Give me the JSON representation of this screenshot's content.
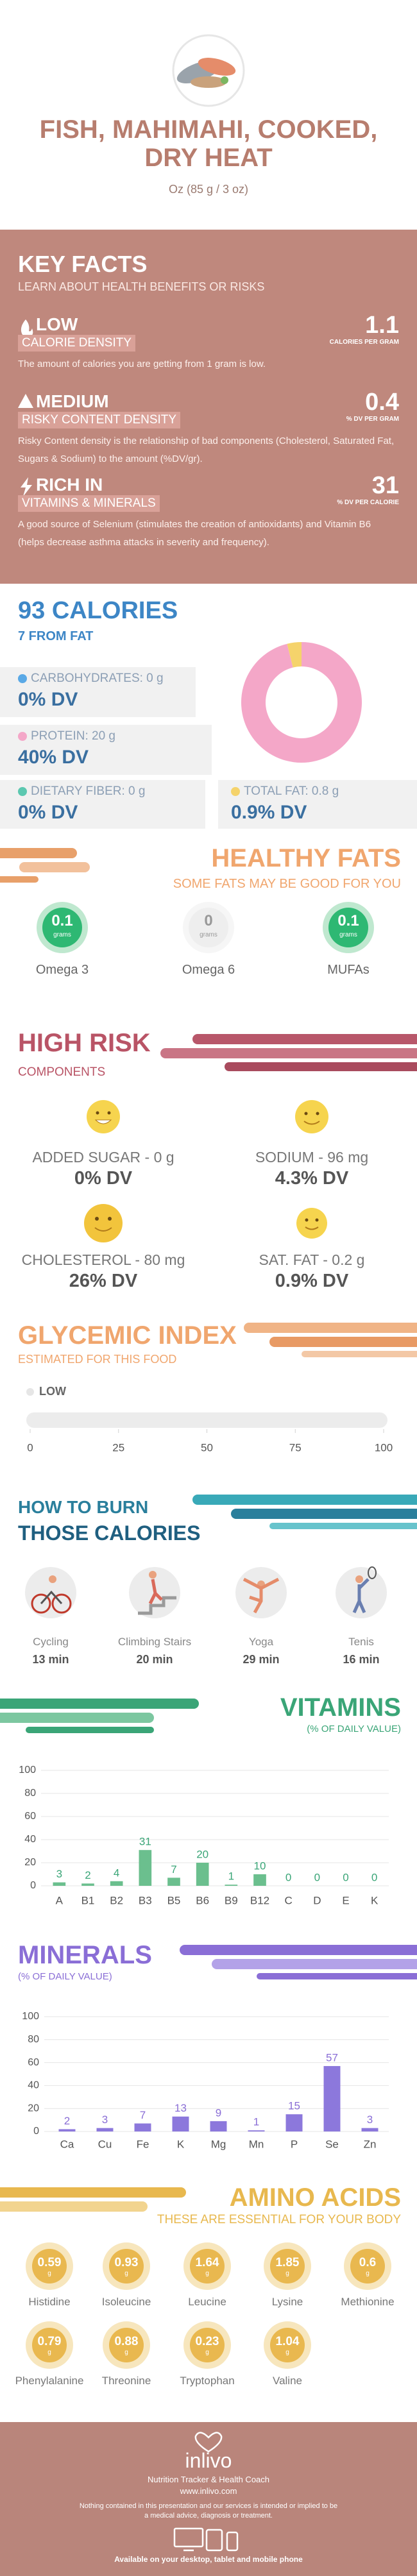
{
  "header": {
    "title": "FISH, MAHIMAHI, COOKED, DRY HEAT",
    "serving": "Oz (85 g / 3 oz)"
  },
  "key_facts": {
    "title": "KEY FACTS",
    "subtitle": "LEARN ABOUT HEALTH BENEFITS OR RISKS",
    "items": [
      {
        "level": "LOW",
        "label": "CALORIE DENSITY",
        "value": 1.1,
        "unit": "CALORIES PER GRAM",
        "text": "The amount of calories you are getting from 1 gram is low."
      },
      {
        "level": "MEDIUM",
        "label": "RISKY CONTENT DENSITY",
        "value": 0.4,
        "unit": "% DV PER GRAM",
        "text": "Risky Content density is the relationship of bad components (Cholesterol, Saturated Fat, Sugars & Sodium) to the amount (%DV/gr)."
      },
      {
        "level": "RICH IN",
        "label": "VITAMINS & MINERALS",
        "value": 31,
        "unit": "% DV PER CALORIE",
        "text": "A good source of Selenium (stimulates the creation of antioxidants) and Vitamin B6 (helps decrease asthma attacks in severity and frequency)."
      }
    ]
  },
  "chart_data": [
    {
      "type": "pie",
      "title": "93 CALORIES",
      "subtitle": "7 FROM FAT",
      "categories": [
        "CARBOHYDRATES: 0 g",
        "PROTEIN: 20 g",
        "DIETARY FIBER: 0 g",
        "TOTAL FAT: 0.8 g"
      ],
      "values": [
        0,
        20,
        0,
        0.8
      ],
      "dv_labels": [
        "0% DV",
        "40% DV",
        "0% DV",
        "0.9% DV"
      ],
      "colors": [
        "#5aa9e6",
        "#f4a7c8",
        "#5cc8b0",
        "#f5d36b"
      ]
    },
    {
      "type": "bar",
      "orientation": "horizontal",
      "title": "GLYCEMIC INDEX",
      "subtitle": "ESTIMATED FOR THIS FOOD",
      "categories": [
        "LOW"
      ],
      "values": [
        0
      ],
      "color": "#9bd17e",
      "xlim": [
        0,
        100
      ],
      "xticks": [
        0,
        25,
        50,
        75,
        100
      ]
    },
    {
      "type": "bar",
      "title": "VITAMINS",
      "subtitle": "(% OF DAILY VALUE)",
      "categories": [
        "A",
        "B1",
        "B2",
        "B3",
        "B5",
        "B6",
        "B9",
        "B12",
        "C",
        "D",
        "E",
        "K"
      ],
      "values": [
        3,
        2,
        4,
        31,
        7,
        20,
        1,
        10,
        0,
        0,
        0,
        0
      ],
      "color": "#6bbf8e",
      "ylim": [
        0,
        100
      ],
      "yticks": [
        0,
        20,
        40,
        60,
        80,
        100
      ],
      "grid": true
    },
    {
      "type": "bar",
      "title": "MINERALS",
      "subtitle": "(% OF DAILY VALUE)",
      "categories": [
        "Ca",
        "Cu",
        "Fe",
        "K",
        "Mg",
        "Mn",
        "P",
        "Se",
        "Zn"
      ],
      "values": [
        2,
        3,
        7,
        13,
        9,
        1,
        15,
        57,
        3
      ],
      "color": "#8c78dc",
      "ylim": [
        0,
        100
      ],
      "yticks": [
        0,
        20,
        40,
        60,
        80,
        100
      ],
      "grid": true
    }
  ],
  "healthy_fats": {
    "title": "HEALTHY FATS",
    "subtitle": "SOME FATS MAY BE GOOD FOR YOU",
    "unit": "grams",
    "items": [
      {
        "name": "Omega 3",
        "value": 0.1
      },
      {
        "name": "Omega 6",
        "value": 0
      },
      {
        "name": "MUFAs",
        "value": 0.1
      }
    ]
  },
  "high_risk": {
    "title": "HIGH RISK",
    "subtitle": "COMPONENTS",
    "items": [
      {
        "label": "ADDED SUGAR - 0 g",
        "dv": "0% DV"
      },
      {
        "label": "SODIUM - 96 mg",
        "dv": "4.3% DV"
      },
      {
        "label": "CHOLESTEROL - 80 mg",
        "dv": "26% DV"
      },
      {
        "label": "SAT. FAT - 0.2 g",
        "dv": "0.9% DV"
      }
    ]
  },
  "burn": {
    "title": "HOW TO BURN",
    "subtitle": "THOSE CALORIES",
    "items": [
      {
        "name": "Cycling",
        "time": "13 min"
      },
      {
        "name": "Climbing Stairs",
        "time": "20 min"
      },
      {
        "name": "Yoga",
        "time": "29 min"
      },
      {
        "name": "Tenis",
        "time": "16 min"
      }
    ]
  },
  "amino_acids": {
    "title": "AMINO ACIDS",
    "subtitle": "THESE ARE ESSENTIAL FOR YOUR BODY",
    "unit": "g",
    "items": [
      {
        "name": "Histidine",
        "value": 0.59
      },
      {
        "name": "Isoleucine",
        "value": 0.93
      },
      {
        "name": "Leucine",
        "value": 1.64
      },
      {
        "name": "Lysine",
        "value": 1.85
      },
      {
        "name": "Methionine",
        "value": 0.6
      },
      {
        "name": "Phenylalanine",
        "value": 0.79
      },
      {
        "name": "Threonine",
        "value": 0.88
      },
      {
        "name": "Tryptophan",
        "value": 0.23
      },
      {
        "name": "Valine",
        "value": 1.04
      }
    ]
  },
  "footer": {
    "brand": "inlivo",
    "tagline": "Nutrition Tracker & Health Coach",
    "url": "www.inlivo.com",
    "disclaimer": "Nothing contained in this presentation and our services is intended or implied to be a medical advice, diagnosis or treatment.",
    "available": "Available on your desktop, tablet and mobile phone"
  }
}
